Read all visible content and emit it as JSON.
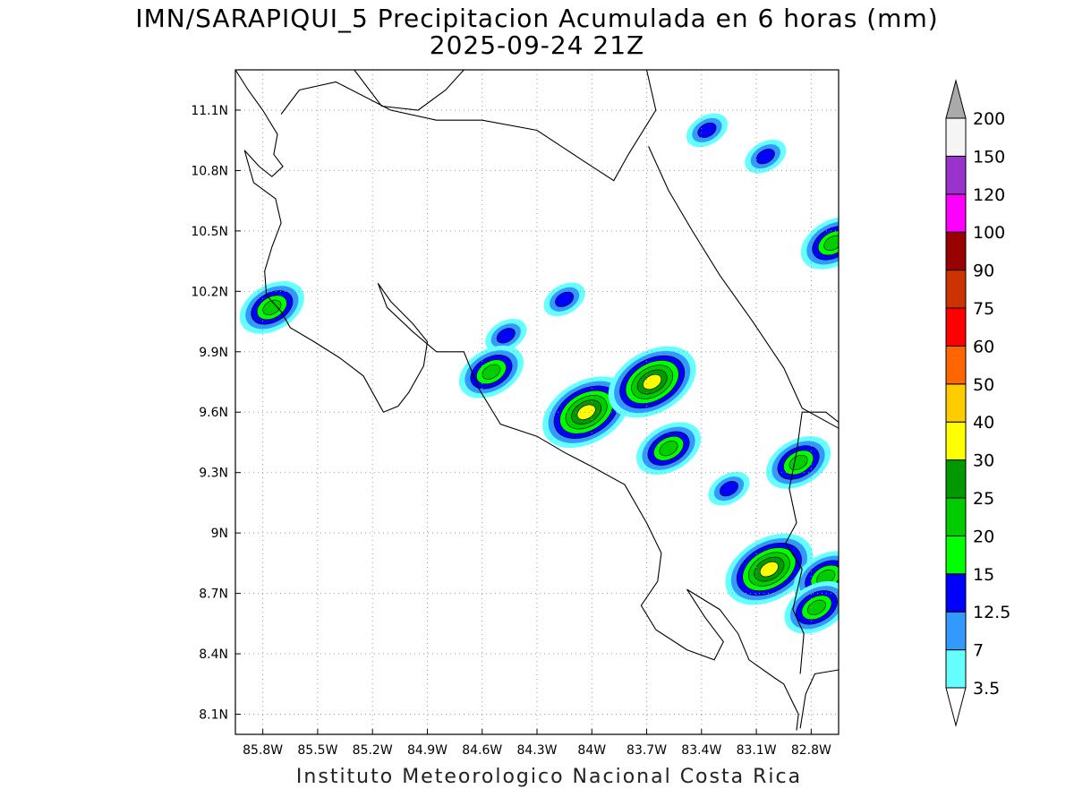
{
  "title_line1": "IMN/SARAPIQUI_5 Precipitacion Acumulada en 6 horas (mm)",
  "title_line2": "2025-09-24 21Z",
  "footer": "Instituto Meteorologico Nacional Costa Rica",
  "map": {
    "lon_range": [
      -85.95,
      -82.65
    ],
    "lat_range": [
      8.0,
      11.3
    ],
    "lon_ticks": [
      {
        "value": -85.8,
        "label": "85.8W"
      },
      {
        "value": -85.5,
        "label": "85.5W"
      },
      {
        "value": -85.2,
        "label": "85.2W"
      },
      {
        "value": -84.9,
        "label": "84.9W"
      },
      {
        "value": -84.6,
        "label": "84.6W"
      },
      {
        "value": -84.3,
        "label": "84.3W"
      },
      {
        "value": -84.0,
        "label": "84W"
      },
      {
        "value": -83.7,
        "label": "83.7W"
      },
      {
        "value": -83.4,
        "label": "83.4W"
      },
      {
        "value": -83.1,
        "label": "83.1W"
      },
      {
        "value": -82.8,
        "label": "82.8W"
      }
    ],
    "lat_ticks": [
      {
        "value": 11.1,
        "label": "11.1N"
      },
      {
        "value": 10.8,
        "label": "10.8N"
      },
      {
        "value": 10.5,
        "label": "10.5N"
      },
      {
        "value": 10.2,
        "label": "10.2N"
      },
      {
        "value": 9.9,
        "label": "9.9N"
      },
      {
        "value": 9.6,
        "label": "9.6N"
      },
      {
        "value": 9.3,
        "label": "9.3N"
      },
      {
        "value": 9.0,
        "label": "9N"
      },
      {
        "value": 8.7,
        "label": "8.7N"
      },
      {
        "value": 8.4,
        "label": "8.4N"
      },
      {
        "value": 8.1,
        "label": "8.1N"
      }
    ],
    "grid": "dotted"
  },
  "colorbar": {
    "levels": [
      {
        "label": "3.5",
        "color": "#66ffff"
      },
      {
        "label": "7",
        "color": "#3399ff"
      },
      {
        "label": "12.5",
        "color": "#0000ff"
      },
      {
        "label": "15",
        "color": "#00ff00"
      },
      {
        "label": "20",
        "color": "#00cc00"
      },
      {
        "label": "25",
        "color": "#009900"
      },
      {
        "label": "30",
        "color": "#ffff00"
      },
      {
        "label": "40",
        "color": "#ffcc00"
      },
      {
        "label": "50",
        "color": "#ff6600"
      },
      {
        "label": "60",
        "color": "#ff0000"
      },
      {
        "label": "75",
        "color": "#cc3300"
      },
      {
        "label": "90",
        "color": "#990000"
      },
      {
        "label": "100",
        "color": "#ff00ff"
      },
      {
        "label": "120",
        "color": "#9933cc"
      },
      {
        "label": "150",
        "color": "#f5f5f5"
      },
      {
        "label": "200",
        "color": "#aaaaaa"
      }
    ]
  },
  "precip_cells": [
    {
      "lon": -84.15,
      "lat": 10.16,
      "level": 2
    },
    {
      "lon": -83.37,
      "lat": 11.0,
      "level": 2
    },
    {
      "lon": -83.05,
      "lat": 10.87,
      "level": 2
    },
    {
      "lon": -82.68,
      "lat": 10.44,
      "level": 4
    },
    {
      "lon": -85.75,
      "lat": 10.12,
      "level": 4
    },
    {
      "lon": -84.47,
      "lat": 9.98,
      "level": 2
    },
    {
      "lon": -84.55,
      "lat": 9.8,
      "level": 4
    },
    {
      "lon": -84.03,
      "lat": 9.6,
      "level": 6
    },
    {
      "lon": -83.67,
      "lat": 9.75,
      "level": 6
    },
    {
      "lon": -83.58,
      "lat": 9.42,
      "level": 4
    },
    {
      "lon": -82.87,
      "lat": 9.35,
      "level": 4
    },
    {
      "lon": -83.25,
      "lat": 9.22,
      "level": 2
    },
    {
      "lon": -83.03,
      "lat": 8.82,
      "level": 6
    },
    {
      "lon": -82.72,
      "lat": 8.78,
      "level": 4
    },
    {
      "lon": -82.77,
      "lat": 8.63,
      "level": 4
    }
  ]
}
